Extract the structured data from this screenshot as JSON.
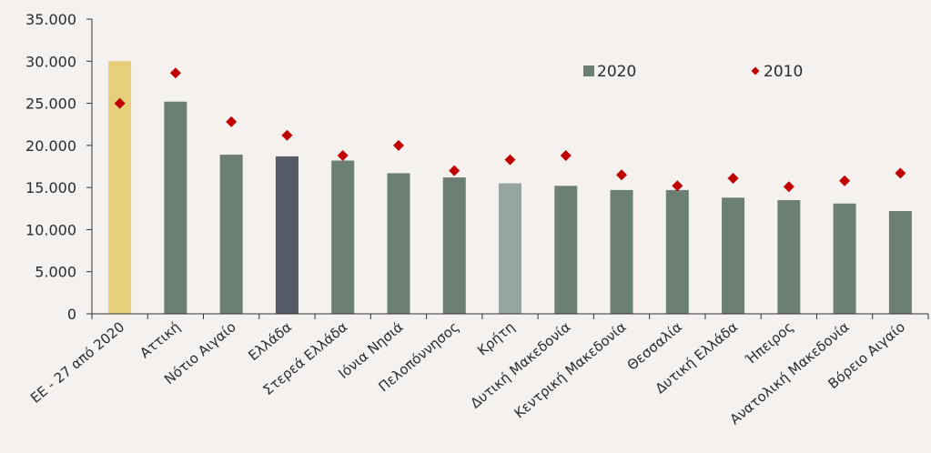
{
  "chart_data": {
    "type": "bar",
    "categories": [
      "ΕΕ - 27 από 2020",
      "Αττική",
      "Νότιο Αιγαίο",
      "Ελλάδα",
      "Στερεά Ελλάδα",
      "Ιόνια Νησιά",
      "Πελοπόννησος",
      "Κρήτη",
      "Δυτική Μακεδονία",
      "Κεντρική Μακεδονία",
      "Θεσσαλία",
      "Δυτική Ελλάδα",
      "Ήπειρος",
      "Ανατολική Μακεδονία",
      "Βόρειο Αιγαίο"
    ],
    "series": [
      {
        "name": "2020",
        "kind": "bar",
        "color": "#6b7f74",
        "values": [
          30000,
          25200,
          18900,
          18700,
          18200,
          16700,
          16200,
          15500,
          15200,
          14700,
          14700,
          13800,
          13500,
          13100,
          12200
        ]
      },
      {
        "name": "2010",
        "kind": "marker",
        "marker": "diamond",
        "color": "#c00000",
        "values": [
          25000,
          28600,
          22800,
          21200,
          18800,
          20000,
          17000,
          18300,
          18800,
          16500,
          15200,
          16100,
          15100,
          15800,
          16700
        ]
      }
    ],
    "bar_colors": [
      "#e6cf78",
      "#6b7f74",
      "#6b7f74",
      "#545a66",
      "#6b7f74",
      "#6b7f74",
      "#6b7f74",
      "#96a59d",
      "#6b7f74",
      "#6b7f74",
      "#6b7f74",
      "#6b7f74",
      "#6b7f74",
      "#6b7f74",
      "#6b7f74"
    ],
    "ylim": [
      0,
      35000
    ],
    "yticks": [
      0,
      5000,
      10000,
      15000,
      20000,
      25000,
      30000,
      35000
    ],
    "ytick_labels": [
      "0",
      "5.000",
      "10.000",
      "15.000",
      "20.000",
      "25.000",
      "30.000",
      "35.000"
    ],
    "xlabel": "",
    "ylabel": "",
    "title": "",
    "grid": false,
    "legend": {
      "position": "top-right",
      "labels": [
        "2020",
        "2010"
      ]
    }
  }
}
